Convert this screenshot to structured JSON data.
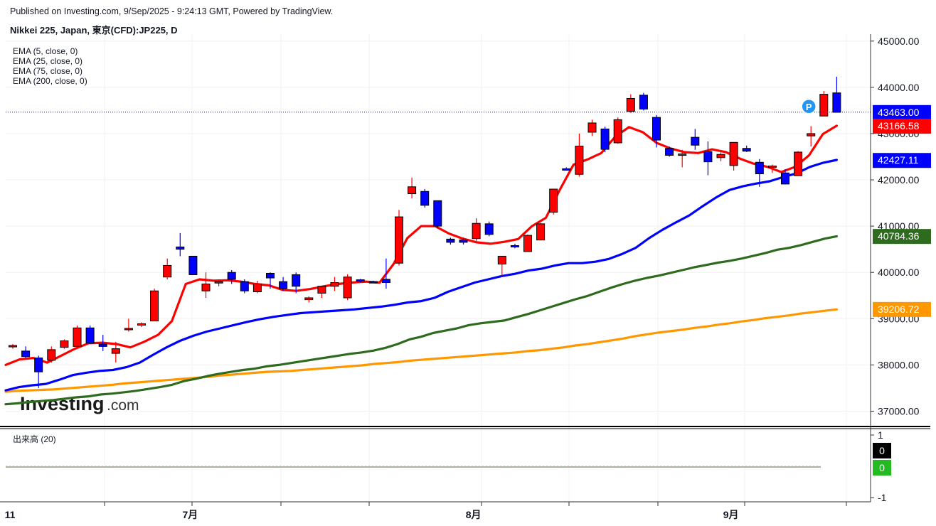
{
  "header": {
    "published": "Published on Investing.com, 9/Sep/2025 - 9:24:13 GMT, Powered by TradingView.",
    "symbol": "Nikkei 225, Japan, 東京(CFD):JP225, D"
  },
  "indicators": [
    "EMA (5, close, 0)",
    "EMA (25, close, 0)",
    "EMA (75, close, 0)",
    "EMA (200, close, 0)"
  ],
  "volume_legend": "出来高 (20)",
  "logo": {
    "word": "Investing",
    "suffix": ".com"
  },
  "marker": {
    "label": "P",
    "color": "#2196f3"
  },
  "colors": {
    "up": "#ff0000",
    "down": "#0000ff",
    "ema5": "#ff0000",
    "ema25": "#0000ff",
    "ema75": "#2e6b1f",
    "ema200": "#ff9800",
    "last_price_line": "#0000ff"
  },
  "chart_data": {
    "type": "candlestick",
    "y_axis": {
      "range": [
        36700,
        45150
      ],
      "ticks": [
        37000,
        38000,
        39000,
        40000,
        41000,
        42000,
        43000,
        44000,
        45000
      ],
      "tick_labels": [
        "37000.00",
        "38000.00",
        "39000.00",
        "40000.00",
        "41000.00",
        "42000.00",
        "43000.00",
        "44000.00",
        "45000.00"
      ]
    },
    "x_axis": {
      "labels": [
        {
          "text": "11",
          "bar": 0
        },
        {
          "text": "7月",
          "bar": 14
        },
        {
          "text": "8月",
          "bar": 36
        },
        {
          "text": "9月",
          "bar": 56
        }
      ]
    },
    "price_labels": [
      {
        "name": "last_price",
        "value": 43463.0,
        "text": "43463.00",
        "color": "#0000ff"
      },
      {
        "name": "ema5",
        "value": 43166.58,
        "text": "43166.58",
        "color": "#ff0000"
      },
      {
        "name": "ema25",
        "value": 42427.11,
        "text": "42427.11",
        "color": "#0000ff"
      },
      {
        "name": "ema75",
        "value": 40784.36,
        "text": "40784.36",
        "color": "#2e6b1f"
      },
      {
        "name": "ema200",
        "value": 39206.72,
        "text": "39206.72",
        "color": "#ff9800"
      }
    ],
    "volume": {
      "axis_labels": [
        "1",
        "-1"
      ],
      "values": [
        0,
        0
      ],
      "value_labels": [
        "0",
        "0"
      ],
      "label_colors": [
        "#000000",
        "#22bb22"
      ]
    },
    "candles": [
      {
        "o": 38400,
        "h": 38450,
        "l": 38350,
        "c": 38420
      },
      {
        "o": 38300,
        "h": 38400,
        "l": 38150,
        "c": 38180
      },
      {
        "o": 38150,
        "h": 38200,
        "l": 37500,
        "c": 37850
      },
      {
        "o": 38100,
        "h": 38400,
        "l": 38050,
        "c": 38330
      },
      {
        "o": 38380,
        "h": 38550,
        "l": 38350,
        "c": 38520
      },
      {
        "o": 38400,
        "h": 38850,
        "l": 38350,
        "c": 38800
      },
      {
        "o": 38800,
        "h": 38850,
        "l": 38450,
        "c": 38470
      },
      {
        "o": 38450,
        "h": 38650,
        "l": 38300,
        "c": 38400
      },
      {
        "o": 38250,
        "h": 38500,
        "l": 38050,
        "c": 38350
      },
      {
        "o": 38770,
        "h": 39000,
        "l": 38720,
        "c": 38790
      },
      {
        "o": 38870,
        "h": 38920,
        "l": 38820,
        "c": 38890
      },
      {
        "o": 38950,
        "h": 39650,
        "l": 38950,
        "c": 39600
      },
      {
        "o": 39900,
        "h": 40300,
        "l": 39850,
        "c": 40150
      },
      {
        "o": 40550,
        "h": 40850,
        "l": 40350,
        "c": 40500
      },
      {
        "o": 40350,
        "h": 40350,
        "l": 39950,
        "c": 39950
      },
      {
        "o": 39600,
        "h": 40000,
        "l": 39450,
        "c": 39750
      },
      {
        "o": 39800,
        "h": 39850,
        "l": 39700,
        "c": 39800
      },
      {
        "o": 40000,
        "h": 40050,
        "l": 39750,
        "c": 39850
      },
      {
        "o": 39800,
        "h": 39850,
        "l": 39550,
        "c": 39600
      },
      {
        "o": 39580,
        "h": 39820,
        "l": 39550,
        "c": 39750
      },
      {
        "o": 39980,
        "h": 40000,
        "l": 39650,
        "c": 39880
      },
      {
        "o": 39800,
        "h": 39900,
        "l": 39600,
        "c": 39650
      },
      {
        "o": 39950,
        "h": 40000,
        "l": 39550,
        "c": 39700
      },
      {
        "o": 39410,
        "h": 39480,
        "l": 39350,
        "c": 39450
      },
      {
        "o": 39550,
        "h": 39700,
        "l": 39450,
        "c": 39700
      },
      {
        "o": 39700,
        "h": 39900,
        "l": 39600,
        "c": 39780
      },
      {
        "o": 39450,
        "h": 39960,
        "l": 39400,
        "c": 39900
      },
      {
        "o": 39840,
        "h": 39860,
        "l": 39780,
        "c": 39820
      },
      {
        "o": 39800,
        "h": 39820,
        "l": 39780,
        "c": 39790
      },
      {
        "o": 39850,
        "h": 40300,
        "l": 39650,
        "c": 39780
      },
      {
        "o": 40200,
        "h": 41350,
        "l": 40150,
        "c": 41200
      },
      {
        "o": 41700,
        "h": 42050,
        "l": 41600,
        "c": 41850
      },
      {
        "o": 41750,
        "h": 41800,
        "l": 41400,
        "c": 41450
      },
      {
        "o": 41550,
        "h": 41550,
        "l": 40950,
        "c": 41000
      },
      {
        "o": 40720,
        "h": 40750,
        "l": 40600,
        "c": 40650
      },
      {
        "o": 40700,
        "h": 40750,
        "l": 40600,
        "c": 40650
      },
      {
        "o": 40730,
        "h": 41170,
        "l": 40680,
        "c": 41060
      },
      {
        "o": 41050,
        "h": 41100,
        "l": 40780,
        "c": 40820
      },
      {
        "o": 40180,
        "h": 40350,
        "l": 39920,
        "c": 40350
      },
      {
        "o": 40580,
        "h": 40620,
        "l": 40520,
        "c": 40560
      },
      {
        "o": 40450,
        "h": 40820,
        "l": 40450,
        "c": 40800
      },
      {
        "o": 40700,
        "h": 41070,
        "l": 40700,
        "c": 41050
      },
      {
        "o": 41300,
        "h": 41800,
        "l": 41250,
        "c": 41800
      },
      {
        "o": 42240,
        "h": 42270,
        "l": 42200,
        "c": 42220
      },
      {
        "o": 42120,
        "h": 43000,
        "l": 42070,
        "c": 42730
      },
      {
        "o": 43030,
        "h": 43300,
        "l": 42950,
        "c": 43230
      },
      {
        "o": 43100,
        "h": 43150,
        "l": 42600,
        "c": 42660
      },
      {
        "o": 42800,
        "h": 43350,
        "l": 42780,
        "c": 43300
      },
      {
        "o": 43480,
        "h": 43850,
        "l": 43450,
        "c": 43760
      },
      {
        "o": 43830,
        "h": 43880,
        "l": 43500,
        "c": 43530
      },
      {
        "o": 43350,
        "h": 43400,
        "l": 42700,
        "c": 42860
      },
      {
        "o": 42680,
        "h": 42720,
        "l": 42500,
        "c": 42530
      },
      {
        "o": 42560,
        "h": 42650,
        "l": 42270,
        "c": 42560
      },
      {
        "o": 42920,
        "h": 43100,
        "l": 42650,
        "c": 42750
      },
      {
        "o": 42610,
        "h": 42830,
        "l": 42100,
        "c": 42390
      },
      {
        "o": 42480,
        "h": 42610,
        "l": 42400,
        "c": 42550
      },
      {
        "o": 42310,
        "h": 42810,
        "l": 42200,
        "c": 42810
      },
      {
        "o": 42680,
        "h": 42740,
        "l": 42600,
        "c": 42620
      },
      {
        "o": 42380,
        "h": 42450,
        "l": 41850,
        "c": 42130
      },
      {
        "o": 42300,
        "h": 42330,
        "l": 42150,
        "c": 42300
      },
      {
        "o": 42150,
        "h": 42230,
        "l": 41900,
        "c": 41910
      },
      {
        "o": 42090,
        "h": 42620,
        "l": 42090,
        "c": 42600
      },
      {
        "o": 42950,
        "h": 43160,
        "l": 42720,
        "c": 43000
      },
      {
        "o": 43380,
        "h": 43920,
        "l": 43380,
        "c": 43850
      },
      {
        "o": 43880,
        "h": 44230,
        "l": 43460,
        "c": 43460
      }
    ],
    "ema5": [
      38000,
      38120,
      38150,
      38050,
      38200,
      38350,
      38470,
      38480,
      38450,
      38380,
      38500,
      38650,
      38950,
      39750,
      39850,
      39820,
      39830,
      39800,
      39750,
      39720,
      39620,
      39600,
      39640,
      39700,
      39750,
      39780,
      39800,
      39780,
      40180,
      40740,
      41000,
      41000,
      40840,
      40730,
      40650,
      40620,
      40660,
      40720,
      41000,
      41180,
      41780,
      42330,
      42440,
      42580,
      42930,
      43140,
      43030,
      42800,
      42680,
      42600,
      42580,
      42660,
      42600,
      42460,
      42350,
      42280,
      42170,
      42280,
      42530,
      42990,
      43170
    ],
    "ema25": [
      37450,
      37520,
      37560,
      37590,
      37680,
      37780,
      37830,
      37870,
      37890,
      37950,
      38050,
      38220,
      38380,
      38520,
      38630,
      38720,
      38790,
      38860,
      38930,
      38990,
      39040,
      39080,
      39120,
      39140,
      39160,
      39180,
      39200,
      39230,
      39260,
      39300,
      39350,
      39380,
      39450,
      39580,
      39680,
      39780,
      39850,
      39920,
      39970,
      40040,
      40080,
      40150,
      40200,
      40200,
      40230,
      40290,
      40400,
      40530,
      40740,
      40920,
      41080,
      41230,
      41430,
      41620,
      41780,
      41860,
      41920,
      41970,
      42060,
      42140,
      42280,
      42370,
      42430
    ],
    "ema75": [
      37150,
      37170,
      37200,
      37220,
      37240,
      37270,
      37300,
      37320,
      37360,
      37380,
      37410,
      37440,
      37480,
      37520,
      37570,
      37650,
      37700,
      37760,
      37810,
      37850,
      37890,
      37920,
      37970,
      38000,
      38040,
      38080,
      38120,
      38160,
      38200,
      38240,
      38270,
      38310,
      38370,
      38450,
      38550,
      38610,
      38690,
      38740,
      38790,
      38860,
      38900,
      38930,
      38960,
      39030,
      39100,
      39180,
      39260,
      39340,
      39420,
      39490,
      39580,
      39670,
      39750,
      39820,
      39880,
      39930,
      39990,
      40050,
      40110,
      40160,
      40210,
      40250,
      40300,
      40360,
      40420,
      40490,
      40530,
      40590,
      40660,
      40730,
      40780
    ],
    "ema200": [
      37420,
      37440,
      37450,
      37460,
      37470,
      37490,
      37510,
      37530,
      37550,
      37570,
      37600,
      37620,
      37640,
      37660,
      37680,
      37700,
      37720,
      37740,
      37770,
      37790,
      37810,
      37830,
      37850,
      37860,
      37870,
      37890,
      37910,
      37930,
      37950,
      37970,
      37990,
      38020,
      38040,
      38060,
      38090,
      38110,
      38130,
      38150,
      38170,
      38190,
      38210,
      38230,
      38250,
      38270,
      38300,
      38320,
      38350,
      38380,
      38420,
      38450,
      38490,
      38530,
      38570,
      38620,
      38660,
      38700,
      38730,
      38760,
      38800,
      38830,
      38870,
      38900,
      38940,
      38970,
      39010,
      39040,
      39070,
      39110,
      39140,
      39170,
      39200
    ]
  }
}
